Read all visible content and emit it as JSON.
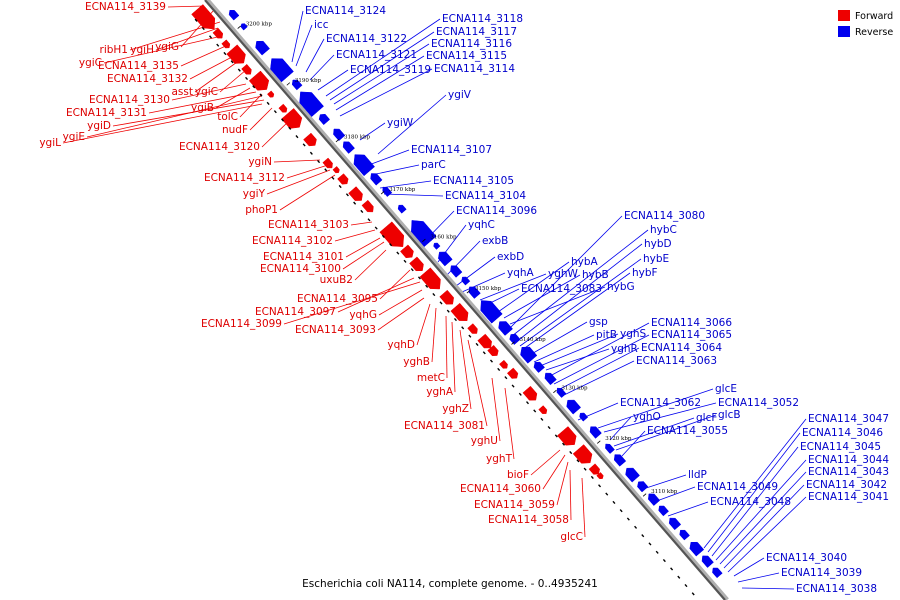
{
  "legend": {
    "items": [
      {
        "label": "Forward",
        "color": "#ee0000"
      },
      {
        "label": "Reverse",
        "color": "#0000ee"
      }
    ]
  },
  "caption": "Escherichia coli NA114, complete genome. - 0..4935241",
  "ruler_ticks": [
    "3200 kbp",
    "3190 kbp",
    "3180 kbp",
    "3170 kbp",
    "3160 kbp",
    "3150 kbp",
    "3140 kbp",
    "3130 kbp",
    "3120 kbp",
    "3110 kbp"
  ],
  "forward_labels": [
    "ECNA114_3139",
    "ygiG",
    "ribH1",
    "ygiH",
    "ygiC",
    "ECNA114_3135",
    "ECNA114_3132",
    "asst",
    "ygiC",
    "ECNA114_3130",
    "ygiB",
    "ECNA114_3131",
    "tolC",
    "ygiD",
    "ygiE",
    "ygiL",
    "nudF",
    "ECNA114_3120",
    "ygiN",
    "ECNA114_3112",
    "ygiY",
    "phoP1",
    "ECNA114_3103",
    "ECNA114_3102",
    "ECNA114_3101",
    "ECNA114_3100",
    "uxuB2",
    "ECNA114_3095",
    "ECNA114_3097",
    "ECNA114_3099",
    "yqhG",
    "ECNA114_3093",
    "yqhD",
    "yghB",
    "metC",
    "yghA",
    "yghZ",
    "ECNA114_3081",
    "yghU",
    "yghT",
    "bioF",
    "ECNA114_3060",
    "ECNA114_3059",
    "ECNA114_3058",
    "glcC"
  ],
  "reverse_labels": [
    "ECNA114_3124",
    "icc",
    "ECNA114_3122",
    "ECNA114_3121",
    "ECNA114_3119",
    "ECNA114_3118",
    "ECNA114_3117",
    "ECNA114_3116",
    "ECNA114_3115",
    "ECNA114_3114",
    "ygiV",
    "ygiW",
    "ECNA114_3107",
    "parC",
    "ECNA114_3105",
    "ECNA114_3104",
    "ECNA114_3096",
    "yqhC",
    "exbB",
    "exbD",
    "yqhA",
    "yghW",
    "ECNA114_3083",
    "hybA",
    "hybB",
    "hybG",
    "ECNA114_3080",
    "hybC",
    "hybD",
    "hybE",
    "hybF",
    "gsp",
    "pitB",
    "yghS",
    "yghR",
    "ECNA114_3066",
    "ECNA114_3065",
    "ECNA114_3064",
    "ECNA114_3063",
    "ECNA114_3062",
    "glcE",
    "ECNA114_3052",
    "yghO",
    "glcF",
    "glcB",
    "ECNA114_3055",
    "lldP",
    "ECNA114_3049",
    "ECNA114_3048",
    "ECNA114_3047",
    "ECNA114_3046",
    "ECNA114_3045",
    "ECNA114_3044",
    "ECNA114_3043",
    "ECNA114_3042",
    "ECNA114_3041",
    "ECNA114_3040",
    "ECNA114_3039",
    "ECNA114_3038"
  ]
}
